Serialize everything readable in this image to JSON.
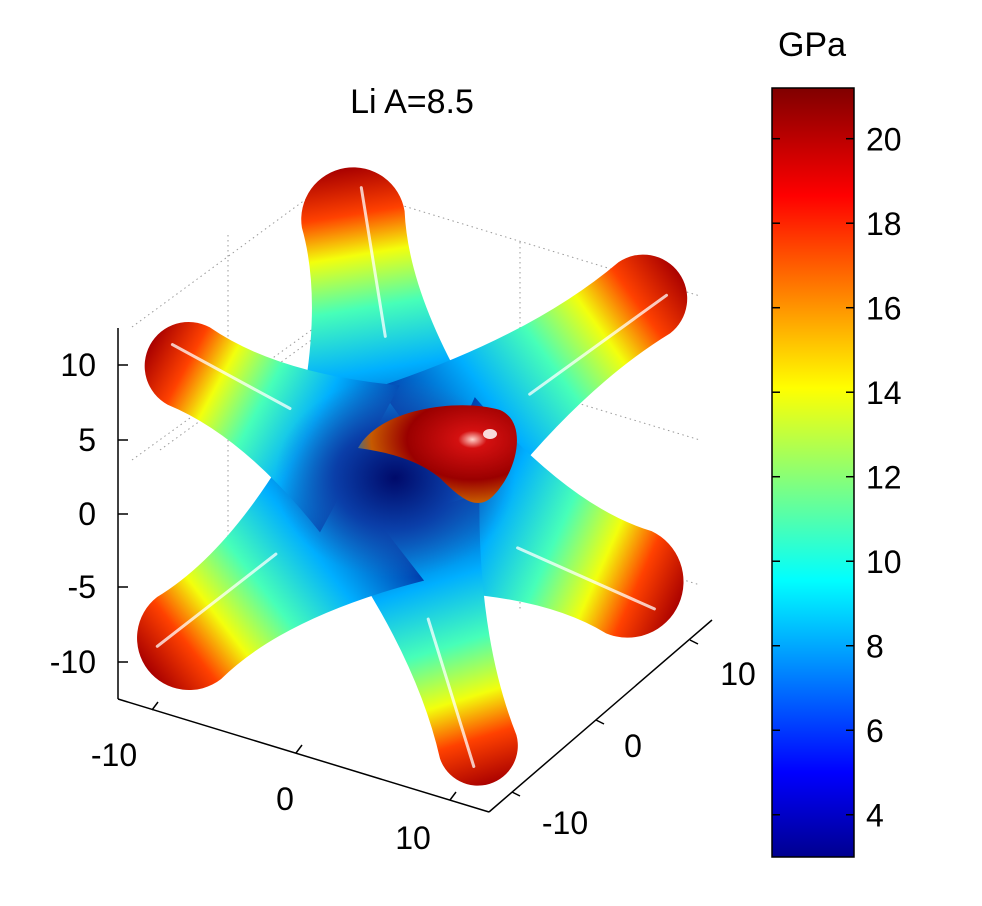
{
  "chart_data": {
    "type": "surface3d",
    "title": "Li A=8.5",
    "colorbar": {
      "label": "GPa",
      "range": [
        3,
        21.2
      ],
      "ticks": [
        "4",
        "6",
        "8",
        "10",
        "12",
        "14",
        "16",
        "18",
        "20"
      ],
      "colormap": "jet"
    },
    "axes": {
      "z_ticks": [
        "10",
        "5",
        "0",
        "-5",
        "-10"
      ],
      "x_ticks": [
        "-10",
        "0",
        "10"
      ],
      "y_ticks": [
        "-10",
        "0",
        "10"
      ],
      "grid": true
    },
    "surface": {
      "shape": "six-lobed star",
      "value_min": 3,
      "value_max": 21,
      "lobe_tip_value": 21,
      "center_value": 3
    }
  }
}
